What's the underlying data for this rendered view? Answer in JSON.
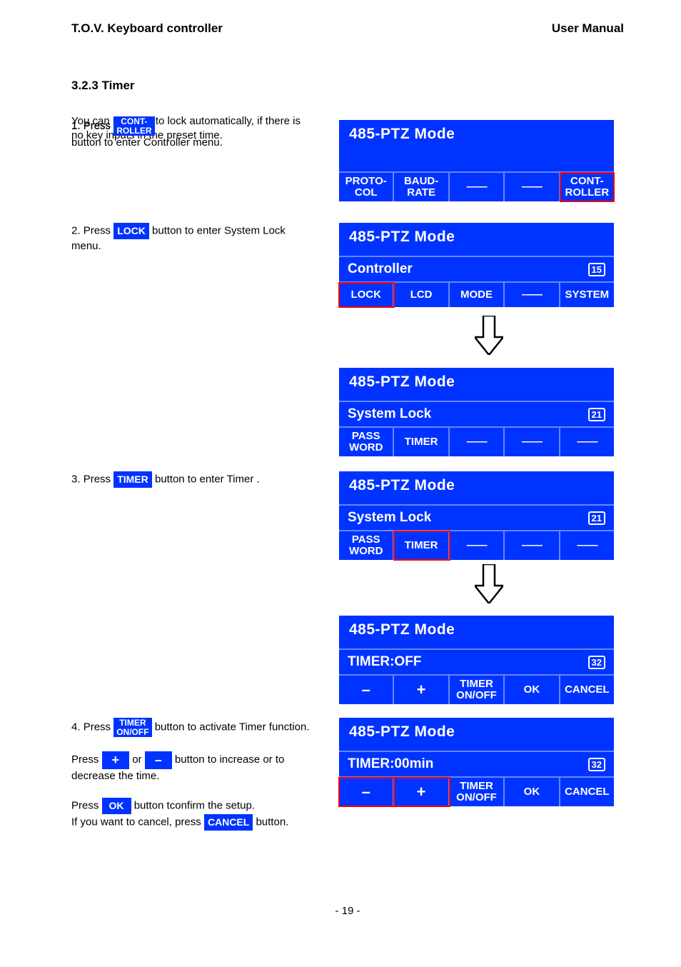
{
  "header": {
    "left": "T.O.V. Keyboard controller",
    "right": "User Manual"
  },
  "section_title": "3.2.3 Timer",
  "intro": "You can program to lock automatically, if there is no key inputs in the preset time.",
  "steps": {
    "s1": {
      "num": "1.",
      "pre": "Press ",
      "post1": " ",
      "post2": "button to enter Controller menu."
    },
    "s2": {
      "num": "2.",
      "pre": "Press ",
      "btn": "LOCK",
      "post": " button to enter System Lock menu."
    },
    "s3": {
      "num": "3.",
      "pre": "Press ",
      "btn": "TIMER",
      "post": " button to enter Timer ."
    },
    "s4": {
      "num": "4.",
      "pre": "Press ",
      "btn": "TIMER ON/OFF",
      "post1": " button to activate Timer function.",
      "line2a": "Press ",
      "plus": "+",
      "line2b": " or ",
      "minus": "–",
      "line2c": " button to increase or to decrease the time.",
      "line3a": "Press ",
      "ok": "OK",
      "line3b": " button tconfirm the setup.",
      "line4a": "If you want to cancel, press ",
      "cancel": "CANCEL",
      "line4b": " button."
    }
  },
  "lcd": {
    "title": "485-PTZ Mode",
    "p1": {
      "cells": [
        "PROTO-\nCOL",
        "BAUD-\nRATE",
        "——",
        "——",
        "CONT-\nROLLER"
      ],
      "red_idx": 4
    },
    "p2": {
      "subtitle": "Controller",
      "page": "15",
      "cells": [
        "LOCK",
        "LCD",
        "MODE",
        "——",
        "SYSTEM"
      ],
      "red_idx": 0
    },
    "p3": {
      "subtitle": "System Lock",
      "page": "21",
      "cells": [
        "PASS\nWORD",
        "TIMER",
        "——",
        "——",
        "——"
      ]
    },
    "p4": {
      "subtitle": "System Lock",
      "page": "21",
      "cells": [
        "PASS\nWORD",
        "TIMER",
        "——",
        "——",
        "——"
      ],
      "red_idx": 1
    },
    "p5": {
      "subtitle": "TIMER:OFF",
      "page": "32",
      "cells": [
        "–",
        "+",
        "TIMER\nON/OFF",
        "OK",
        "CANCEL"
      ]
    },
    "p6": {
      "subtitle": "TIMER:00min",
      "page": "32",
      "cells": [
        "–",
        "+",
        "TIMER\nON/OFF",
        "OK",
        "CANCEL"
      ],
      "red_idx": [
        0,
        1
      ]
    }
  },
  "footer": "- 19 -",
  "colors": {
    "blue": "#0033ff",
    "red": "#ff0000"
  }
}
